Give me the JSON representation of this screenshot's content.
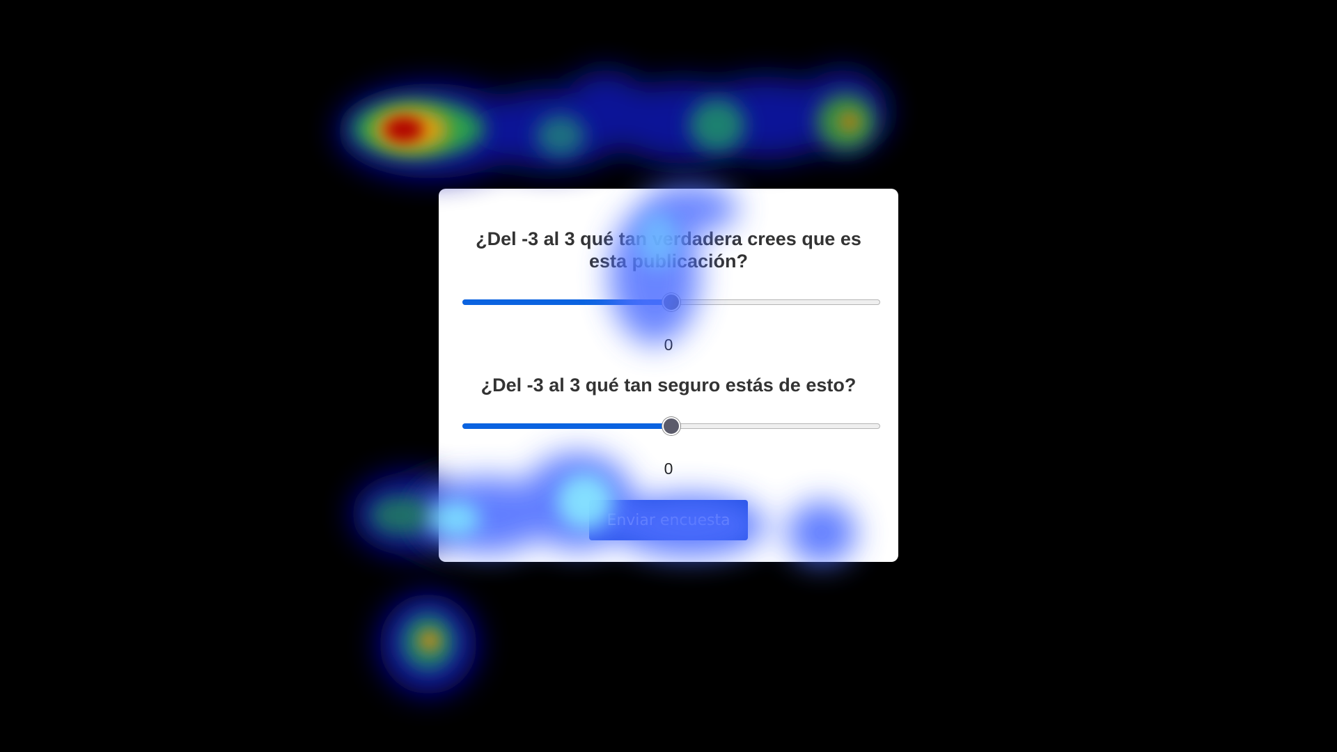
{
  "survey": {
    "question1": "¿Del -3 al 3 qué tan verdadera crees que es esta publicación?",
    "question2": "¿Del -3 al 3 qué tan seguro estás de esto?",
    "slider1": {
      "min": -3,
      "max": 3,
      "value": 0
    },
    "slider2": {
      "min": -3,
      "max": 3,
      "value": 0
    },
    "value1": "0",
    "value2": "0",
    "submit_label": "Enviar encuesta"
  },
  "colors": {
    "background": "#000000",
    "card": "#ffffff",
    "slider_fill": "#0b63e0",
    "button": "#1f4de0"
  }
}
